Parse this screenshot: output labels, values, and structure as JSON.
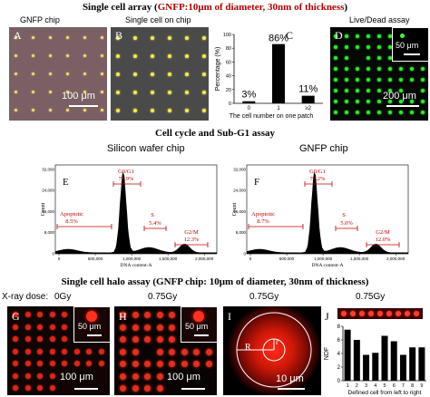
{
  "section1": {
    "title_prefix": "Single cell array (",
    "title_red": "GNFP:10μm of diameter, 30nm of thickness",
    "title_suffix": ")",
    "panel_a": {
      "caption": "GNFP chip",
      "letter": "A",
      "scale": "100 μm"
    },
    "panel_b": {
      "caption": "Single cell on chip",
      "letter": "B"
    },
    "panel_c": {
      "letter": "C"
    },
    "panel_d": {
      "caption": "Live/Dead assay",
      "letter": "D",
      "scale_inset": "50 μm",
      "scale": "200 μm"
    }
  },
  "chart_data": {
    "type": "bar",
    "categories": [
      "0",
      "1",
      "≥2"
    ],
    "values": [
      3,
      86,
      11
    ],
    "data_labels": [
      "3%",
      "86%",
      "11%"
    ],
    "xlabel": "The cell number on one patch",
    "ylabel": "Percentage (%)",
    "ylim": [
      0,
      100
    ],
    "yticks": [
      "0",
      "20",
      "40",
      "60",
      "80",
      "100"
    ]
  },
  "section2": {
    "title": "Cell cycle and Sub-G1 assay",
    "panel_e": {
      "caption": "Silicon wafer chip",
      "letter": "E",
      "g0g1": "G0/G1",
      "g0g1_val": "71.9%",
      "apoptotic": "Apoptotic",
      "apoptotic_val": "8.5%",
      "s": "S",
      "s_val": "5.4%",
      "g2m": "G2/M",
      "g2m_val": "12.3%",
      "xlabel": "DNA content-A",
      "ylabel": "Count"
    },
    "panel_f": {
      "caption": "GNFP chip",
      "letter": "F",
      "g0g1": "G0/G1",
      "g0g1_val": "72.2%",
      "apoptotic": "Apoptotic",
      "apoptotic_val": "8.7%",
      "s": "S",
      "s_val": "5.0%",
      "g2m": "G2/M",
      "g2m_val": "12.0%",
      "xlabel": "DNA content-A",
      "ylabel": "Count"
    },
    "xticks": [
      "0",
      "500,000",
      "1,000,000",
      "1,500,000",
      "2,000,000"
    ],
    "yticks": [
      "0",
      "8,000",
      "16,000",
      "24,000",
      "32,000"
    ]
  },
  "section3": {
    "title": "Single cell halo assay (GNFP chip: 10μm of diameter, 30nm of thickness)",
    "xray_label": "X-ray dose:",
    "panel_g": {
      "dose": "0Gy",
      "letter": "G",
      "scale_inset": "50 μm",
      "scale": "100 μm"
    },
    "panel_h": {
      "dose": "0.75Gy",
      "letter": "H",
      "scale_inset": "50 μm",
      "scale": "100 μm"
    },
    "panel_i": {
      "dose": "0.75Gy",
      "letter": "I",
      "R": "R",
      "r": "r",
      "scale": "10 μm"
    },
    "panel_j": {
      "dose": "0.75Gy",
      "letter": "J",
      "ylabel": "NDF",
      "xlabel": "Defined cell from left to right",
      "categories": [
        "1",
        "2",
        "3",
        "4",
        "5",
        "6",
        "7",
        "8",
        "9"
      ],
      "values": [
        7.5,
        6.0,
        3.8,
        4.1,
        6.6,
        5.8,
        3.8,
        4.9,
        4.9
      ],
      "ylim": [
        0,
        8
      ],
      "yticks": [
        "0",
        "2",
        "4",
        "6",
        "8"
      ]
    }
  }
}
